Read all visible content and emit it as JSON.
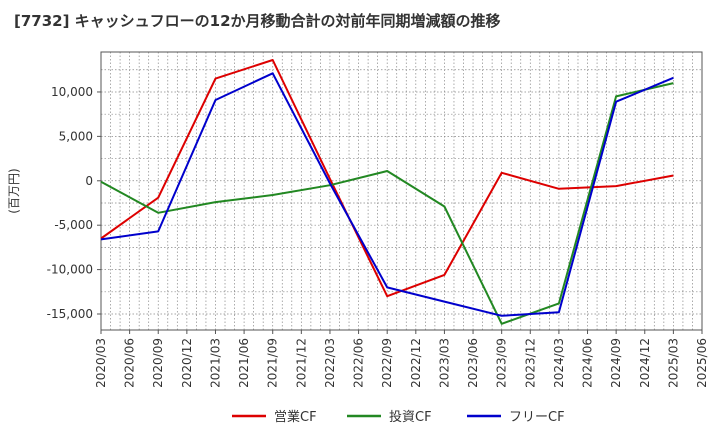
{
  "chart_data": {
    "type": "line",
    "title": "[7732]  キャッシュフローの12か月移動合計の対前年同期増減額の推移",
    "xlabel": "",
    "ylabel": "(百万円)",
    "ylim": [
      -16800,
      14500
    ],
    "y_ticks": [
      10000,
      5000,
      0,
      -5000,
      -10000,
      -15000
    ],
    "y_tick_labels": [
      "10,000",
      "5,000",
      "0",
      "-5,000",
      "-10,000",
      "-15,000"
    ],
    "x_ticks": [
      "2020/03",
      "2020/06",
      "2020/09",
      "2020/12",
      "2021/03",
      "2021/06",
      "2021/09",
      "2021/12",
      "2022/03",
      "2022/06",
      "2022/09",
      "2022/12",
      "2023/03",
      "2023/06",
      "2023/09",
      "2023/12",
      "2024/03",
      "2024/06",
      "2024/09",
      "2024/12",
      "2025/03",
      "2025/06"
    ],
    "grid": true,
    "legend_position": "bottom",
    "series": [
      {
        "name": "営業CF",
        "color": "#dd0000",
        "x": [
          "2020/03",
          "2020/09",
          "2021/03",
          "2021/09",
          "2022/03",
          "2022/09",
          "2023/03",
          "2023/09",
          "2024/03",
          "2024/09",
          "2025/03"
        ],
        "values": [
          -6500,
          -1900,
          11500,
          13600,
          200,
          -13000,
          -10600,
          900,
          -900,
          -600,
          600
        ]
      },
      {
        "name": "投資CF",
        "color": "#228822",
        "x": [
          "2020/03",
          "2020/09",
          "2021/03",
          "2021/09",
          "2022/03",
          "2022/09",
          "2023/03",
          "2023/09",
          "2024/03",
          "2024/09",
          "2025/03"
        ],
        "values": [
          -100,
          -3600,
          -2400,
          -1600,
          -500,
          1100,
          -2900,
          -16100,
          -13800,
          9500,
          11000
        ]
      },
      {
        "name": "フリーCF",
        "color": "#0000cc",
        "x": [
          "2020/03",
          "2020/09",
          "2021/03",
          "2021/09",
          "2022/03",
          "2022/09",
          "2023/03",
          "2023/09",
          "2024/03",
          "2024/09",
          "2025/03"
        ],
        "values": [
          -6600,
          -5700,
          9100,
          12100,
          -300,
          -12000,
          -13600,
          -15200,
          -14800,
          8900,
          11600
        ]
      }
    ]
  }
}
